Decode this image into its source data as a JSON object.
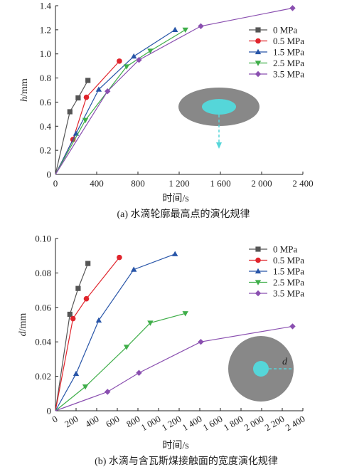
{
  "chart_data": [
    {
      "type": "line",
      "panel": "a",
      "ylabel": "h/mm",
      "xlabel": "时间/s",
      "caption": "(a) 水滴轮廓最高点的演化规律",
      "xlim": [
        0,
        2400
      ],
      "ylim": [
        0,
        1.4
      ],
      "xticks": [
        0,
        400,
        800,
        1200,
        1600,
        2000,
        2400
      ],
      "xtick_labels": [
        "0",
        "400",
        "800",
        "1 200",
        "1 600",
        "2 000",
        "2 400"
      ],
      "yticks": [
        0,
        0.2,
        0.4,
        0.6,
        0.8,
        1.0,
        1.2,
        1.4
      ],
      "ytick_labels": [
        "0",
        "0.2",
        "0.4",
        "0.6",
        "0.8",
        "1.0",
        "1.2",
        "1.4"
      ],
      "legend": "top-right",
      "series": [
        {
          "name": "0 MPa",
          "color": "#555555",
          "marker": "square",
          "x": [
            0,
            140,
            220,
            315
          ],
          "y": [
            0,
            0.52,
            0.635,
            0.78
          ]
        },
        {
          "name": "0.5 MPa",
          "color": "#e0242c",
          "marker": "circle",
          "x": [
            0,
            170,
            300,
            620
          ],
          "y": [
            0,
            0.29,
            0.64,
            0.94
          ]
        },
        {
          "name": "1.5 MPa",
          "color": "#2855a8",
          "marker": "triangle-up",
          "x": [
            0,
            200,
            420,
            760,
            1160
          ],
          "y": [
            0,
            0.34,
            0.705,
            0.98,
            1.2
          ]
        },
        {
          "name": "2.5 MPa",
          "color": "#3fae49",
          "marker": "triangle-down",
          "x": [
            0,
            290,
            690,
            920,
            1260
          ],
          "y": [
            0,
            0.45,
            0.895,
            1.025,
            1.2
          ]
        },
        {
          "name": "3.5 MPa",
          "color": "#8a4fb0",
          "marker": "diamond",
          "x": [
            0,
            505,
            810,
            1410,
            2300
          ],
          "y": [
            0,
            0.69,
            0.95,
            1.23,
            1.38
          ]
        }
      ]
    },
    {
      "type": "line",
      "panel": "b",
      "ylabel": "d/mm",
      "xlabel": "时间/s",
      "caption": "(b) 水滴与含瓦斯煤接触面的宽度演化规律",
      "inset_label": "d",
      "xlim": [
        0,
        2400
      ],
      "ylim": [
        0,
        0.1
      ],
      "xticks": [
        0,
        200,
        400,
        600,
        800,
        1000,
        1200,
        1400,
        1600,
        1800,
        2000,
        2200,
        2400
      ],
      "xtick_labels": [
        "0",
        "200",
        "400",
        "600",
        "800",
        "1 000",
        "1 200",
        "1 400",
        "1 600",
        "1 800",
        "2 000",
        "2 200",
        "2 400"
      ],
      "yticks": [
        0,
        0.02,
        0.04,
        0.06,
        0.08,
        0.1
      ],
      "ytick_labels": [
        "0",
        "0.02",
        "0.04",
        "0.06",
        "0.08",
        "0.10"
      ],
      "legend": "top-right",
      "series": [
        {
          "name": "0 MPa",
          "color": "#555555",
          "marker": "square",
          "x": [
            0,
            140,
            220,
            315
          ],
          "y": [
            0,
            0.056,
            0.071,
            0.0855
          ]
        },
        {
          "name": "0.5 MPa",
          "color": "#e0242c",
          "marker": "circle",
          "x": [
            0,
            170,
            300,
            620
          ],
          "y": [
            0,
            0.0535,
            0.065,
            0.089
          ]
        },
        {
          "name": "1.5 MPa",
          "color": "#2855a8",
          "marker": "triangle-up",
          "x": [
            0,
            200,
            420,
            760,
            1160
          ],
          "y": [
            0,
            0.0215,
            0.0525,
            0.082,
            0.091
          ]
        },
        {
          "name": "2.5 MPa",
          "color": "#3fae49",
          "marker": "triangle-down",
          "x": [
            0,
            290,
            690,
            920,
            1260
          ],
          "y": [
            0,
            0.014,
            0.037,
            0.051,
            0.0565
          ]
        },
        {
          "name": "3.5 MPa",
          "color": "#8a4fb0",
          "marker": "diamond",
          "x": [
            0,
            505,
            810,
            1410,
            2300
          ],
          "y": [
            0,
            0.011,
            0.022,
            0.04,
            0.049
          ]
        }
      ]
    }
  ]
}
